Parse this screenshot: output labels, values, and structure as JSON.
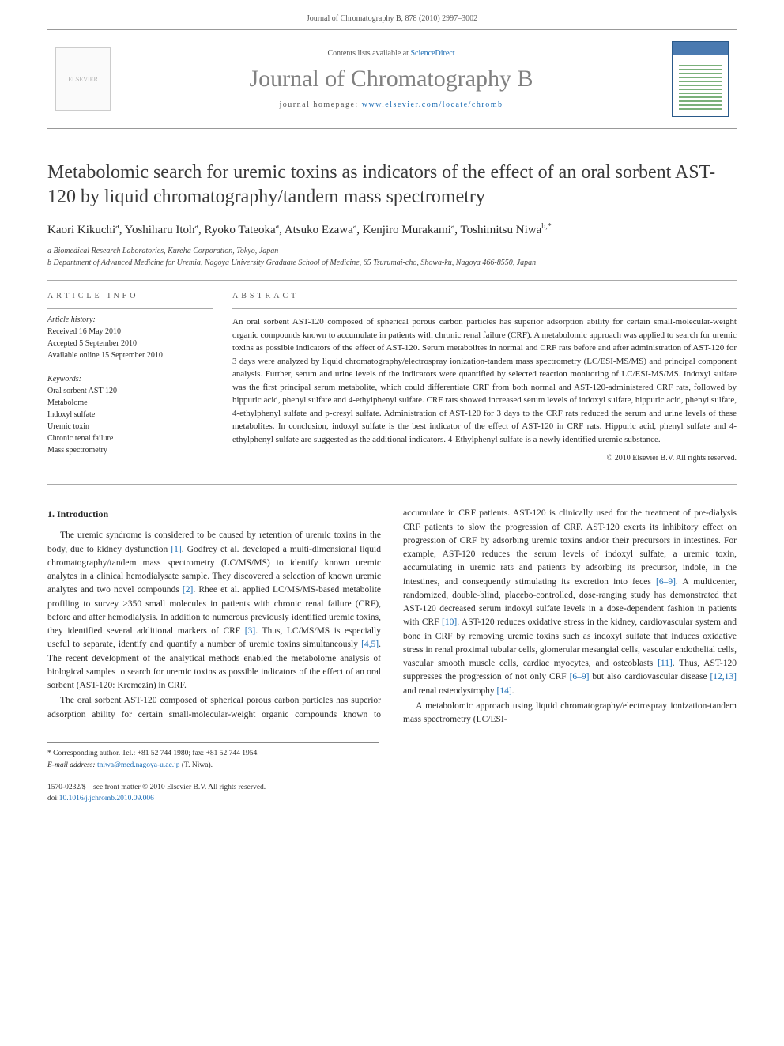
{
  "header": {
    "running": "Journal of Chromatography B, 878 (2010) 2997–3002"
  },
  "masthead": {
    "contents_prefix": "Contents lists available at ",
    "contents_link": "ScienceDirect",
    "journal": "Journal of Chromatography B",
    "homepage_prefix": "journal homepage: ",
    "homepage_url": "www.elsevier.com/locate/chromb",
    "elsevier_alt": "ELSEVIER"
  },
  "title": "Metabolomic search for uremic toxins as indicators of the effect of an oral sorbent AST-120 by liquid chromatography/tandem mass spectrometry",
  "authors_html": "Kaori Kikuchi<sup>a</sup>, Yoshiharu Itoh<sup>a</sup>, Ryoko Tateoka<sup>a</sup>, Atsuko Ezawa<sup>a</sup>, Kenjiro Murakami<sup>a</sup>, Toshimitsu Niwa<sup>b,*</sup>",
  "affiliations": [
    "a Biomedical Research Laboratories, Kureha Corporation, Tokyo, Japan",
    "b Department of Advanced Medicine for Uremia, Nagoya University Graduate School of Medicine, 65 Tsurumai-cho, Showa-ku, Nagoya 466-8550, Japan"
  ],
  "article_info": {
    "heading": "ARTICLE INFO",
    "history_label": "Article history:",
    "history": [
      "Received 16 May 2010",
      "Accepted 5 September 2010",
      "Available online 15 September 2010"
    ],
    "keywords_label": "Keywords:",
    "keywords": [
      "Oral sorbent AST-120",
      "Metabolome",
      "Indoxyl sulfate",
      "Uremic toxin",
      "Chronic renal failure",
      "Mass spectrometry"
    ]
  },
  "abstract": {
    "heading": "ABSTRACT",
    "text": "An oral sorbent AST-120 composed of spherical porous carbon particles has superior adsorption ability for certain small-molecular-weight organic compounds known to accumulate in patients with chronic renal failure (CRF). A metabolomic approach was applied to search for uremic toxins as possible indicators of the effect of AST-120. Serum metabolites in normal and CRF rats before and after administration of AST-120 for 3 days were analyzed by liquid chromatography/electrospray ionization-tandem mass spectrometry (LC/ESI-MS/MS) and principal component analysis. Further, serum and urine levels of the indicators were quantified by selected reaction monitoring of LC/ESI-MS/MS. Indoxyl sulfate was the first principal serum metabolite, which could differentiate CRF from both normal and AST-120-administered CRF rats, followed by hippuric acid, phenyl sulfate and 4-ethylphenyl sulfate. CRF rats showed increased serum levels of indoxyl sulfate, hippuric acid, phenyl sulfate, 4-ethylphenyl sulfate and p-cresyl sulfate. Administration of AST-120 for 3 days to the CRF rats reduced the serum and urine levels of these metabolites. In conclusion, indoxyl sulfate is the best indicator of the effect of AST-120 in CRF rats. Hippuric acid, phenyl sulfate and 4-ethylphenyl sulfate are suggested as the additional indicators. 4-Ethylphenyl sulfate is a newly identified uremic substance.",
    "copyright": "© 2010 Elsevier B.V. All rights reserved."
  },
  "body": {
    "section_heading": "1. Introduction",
    "para1": "The uremic syndrome is considered to be caused by retention of uremic toxins in the body, due to kidney dysfunction [1]. Godfrey et al. developed a multi-dimensional liquid chromatography/tandem mass spectrometry (LC/MS/MS) to identify known uremic analytes in a clinical hemodialysate sample. They discovered a selection of known uremic analytes and two novel compounds [2]. Rhee et al. applied LC/MS/MS-based metabolite profiling to survey >350 small molecules in patients with chronic renal failure (CRF), before and after hemodialysis. In addition to numerous previously identified uremic toxins, they identified several additional markers of CRF [3]. Thus, LC/MS/MS is especially useful to separate, identify and quantify a number of uremic toxins simultaneously [4,5]. The recent development of the analytical methods enabled the metabolome analysis of biological samples to search for uremic toxins as possible indicators of the effect of an oral sorbent (AST-120: Kremezin) in CRF.",
    "para2": "The oral sorbent AST-120 composed of spherical porous carbon particles has superior adsorption ability for certain small-molecular-weight organic compounds known to accumulate in CRF patients. AST-120 is clinically used for the treatment of pre-dialysis CRF patients to slow the progression of CRF. AST-120 exerts its inhibitory effect on progression of CRF by adsorbing uremic toxins and/or their precursors in intestines. For example, AST-120 reduces the serum levels of indoxyl sulfate, a uremic toxin, accumulating in uremic rats and patients by adsorbing its precursor, indole, in the intestines, and consequently stimulating its excretion into feces [6–9]. A multicenter, randomized, double-blind, placebo-controlled, dose-ranging study has demonstrated that AST-120 decreased serum indoxyl sulfate levels in a dose-dependent fashion in patients with CRF [10]. AST-120 reduces oxidative stress in the kidney, cardiovascular system and bone in CRF by removing uremic toxins such as indoxyl sulfate that induces oxidative stress in renal proximal tubular cells, glomerular mesangial cells, vascular endothelial cells, vascular smooth muscle cells, cardiac myocytes, and osteoblasts [11]. Thus, AST-120 suppresses the progression of not only CRF [6–9] but also cardiovascular disease [12,13] and renal osteodystrophy [14].",
    "para3": "A metabolomic approach using liquid chromatography/electrospray ionization-tandem mass spectrometry (LC/ESI-"
  },
  "footnote": {
    "corr": "* Corresponding author. Tel.: +81 52 744 1980; fax: +81 52 744 1954.",
    "email_label": "E-mail address:",
    "email": "tniwa@med.nagoya-u.ac.jp",
    "email_tail": " (T. Niwa)."
  },
  "footer": {
    "line1": "1570-0232/$ – see front matter © 2010 Elsevier B.V. All rights reserved.",
    "doi_prefix": "doi:",
    "doi": "10.1016/j.jchromb.2010.09.006"
  }
}
